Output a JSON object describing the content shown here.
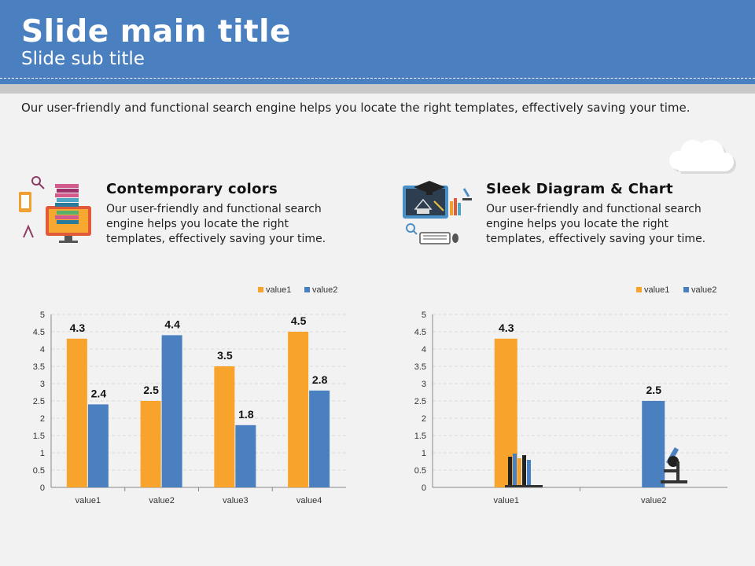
{
  "slide": {
    "title": "Slide main title",
    "subtitle": "Slide sub title",
    "intro": "Our user-friendly and functional search engine helps you locate the right templates, effectively saving your time."
  },
  "features": [
    {
      "title": "Contemporary  colors",
      "text": "Our user-friendly and functional search engine helps you locate the right templates,  effectively  saving  your time."
    },
    {
      "title": "Sleek Diagram  & Chart",
      "text": "Our user-friendly and functional search engine helps you locate the right templates,  effectively  saving  your time."
    }
  ],
  "colors": {
    "header": "#4a7fc0",
    "value1": "#f8a42c",
    "value2": "#4a7fc0"
  },
  "chart_data": [
    {
      "type": "bar",
      "categories": [
        "value1",
        "value2",
        "value3",
        "value4"
      ],
      "series": [
        {
          "name": "value1",
          "values": [
            4.3,
            2.5,
            3.5,
            4.5
          ]
        },
        {
          "name": "value2",
          "values": [
            2.4,
            4.4,
            1.8,
            2.8
          ]
        }
      ],
      "ylim": [
        0,
        5
      ],
      "yticks": [
        "0",
        "0.5",
        "1",
        "1.5",
        "2",
        "2.5",
        "3",
        "3.5",
        "4",
        "4.5",
        "5"
      ],
      "grid": true,
      "legend": "top-right"
    },
    {
      "type": "bar",
      "categories": [
        "value1",
        "value2"
      ],
      "series": [
        {
          "name": "value1",
          "values": [
            4.3,
            null
          ]
        },
        {
          "name": "value2",
          "values": [
            null,
            2.5
          ]
        }
      ],
      "ylim": [
        0,
        5
      ],
      "yticks": [
        "0",
        "0.5",
        "1",
        "1.5",
        "2",
        "2.5",
        "3",
        "3.5",
        "4",
        "4.5",
        "5"
      ],
      "grid": true,
      "legend": "top-right"
    }
  ]
}
